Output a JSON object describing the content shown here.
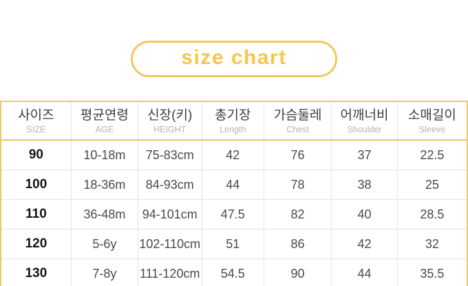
{
  "title": {
    "label": "size chart"
  },
  "colors": {
    "accent": "#F0C75E",
    "title_text": "#F9C64B",
    "grid_line": "#E3E3E3",
    "header_text": "#3C3C3C",
    "subheader_text": "#B3B3B3",
    "size_text": "#141414",
    "cell_text": "#4A4A4A"
  },
  "chart_data": {
    "type": "table",
    "title": "size chart",
    "columns": [
      {
        "ko": "사이즈",
        "en": "SIZE"
      },
      {
        "ko": "평균연령",
        "en": "AGE"
      },
      {
        "ko": "신장(키)",
        "en": "HEIGHT"
      },
      {
        "ko": "총기장",
        "en": "Length"
      },
      {
        "ko": "가슴둘레",
        "en": "Chest"
      },
      {
        "ko": "어깨너비",
        "en": "Shoulder"
      },
      {
        "ko": "소매길이",
        "en": "Sleeve"
      }
    ],
    "rows": [
      [
        "90",
        "10-18m",
        "75-83cm",
        "42",
        "76",
        "37",
        "22.5"
      ],
      [
        "100",
        "18-36m",
        "84-93cm",
        "44",
        "78",
        "38",
        "25"
      ],
      [
        "110",
        "36-48m",
        "94-101cm",
        "47.5",
        "82",
        "40",
        "28.5"
      ],
      [
        "120",
        "5-6y",
        "102-110cm",
        "51",
        "86",
        "42",
        "32"
      ],
      [
        "130",
        "7-8y",
        "111-120cm",
        "54.5",
        "90",
        "44",
        "35.5"
      ]
    ]
  }
}
